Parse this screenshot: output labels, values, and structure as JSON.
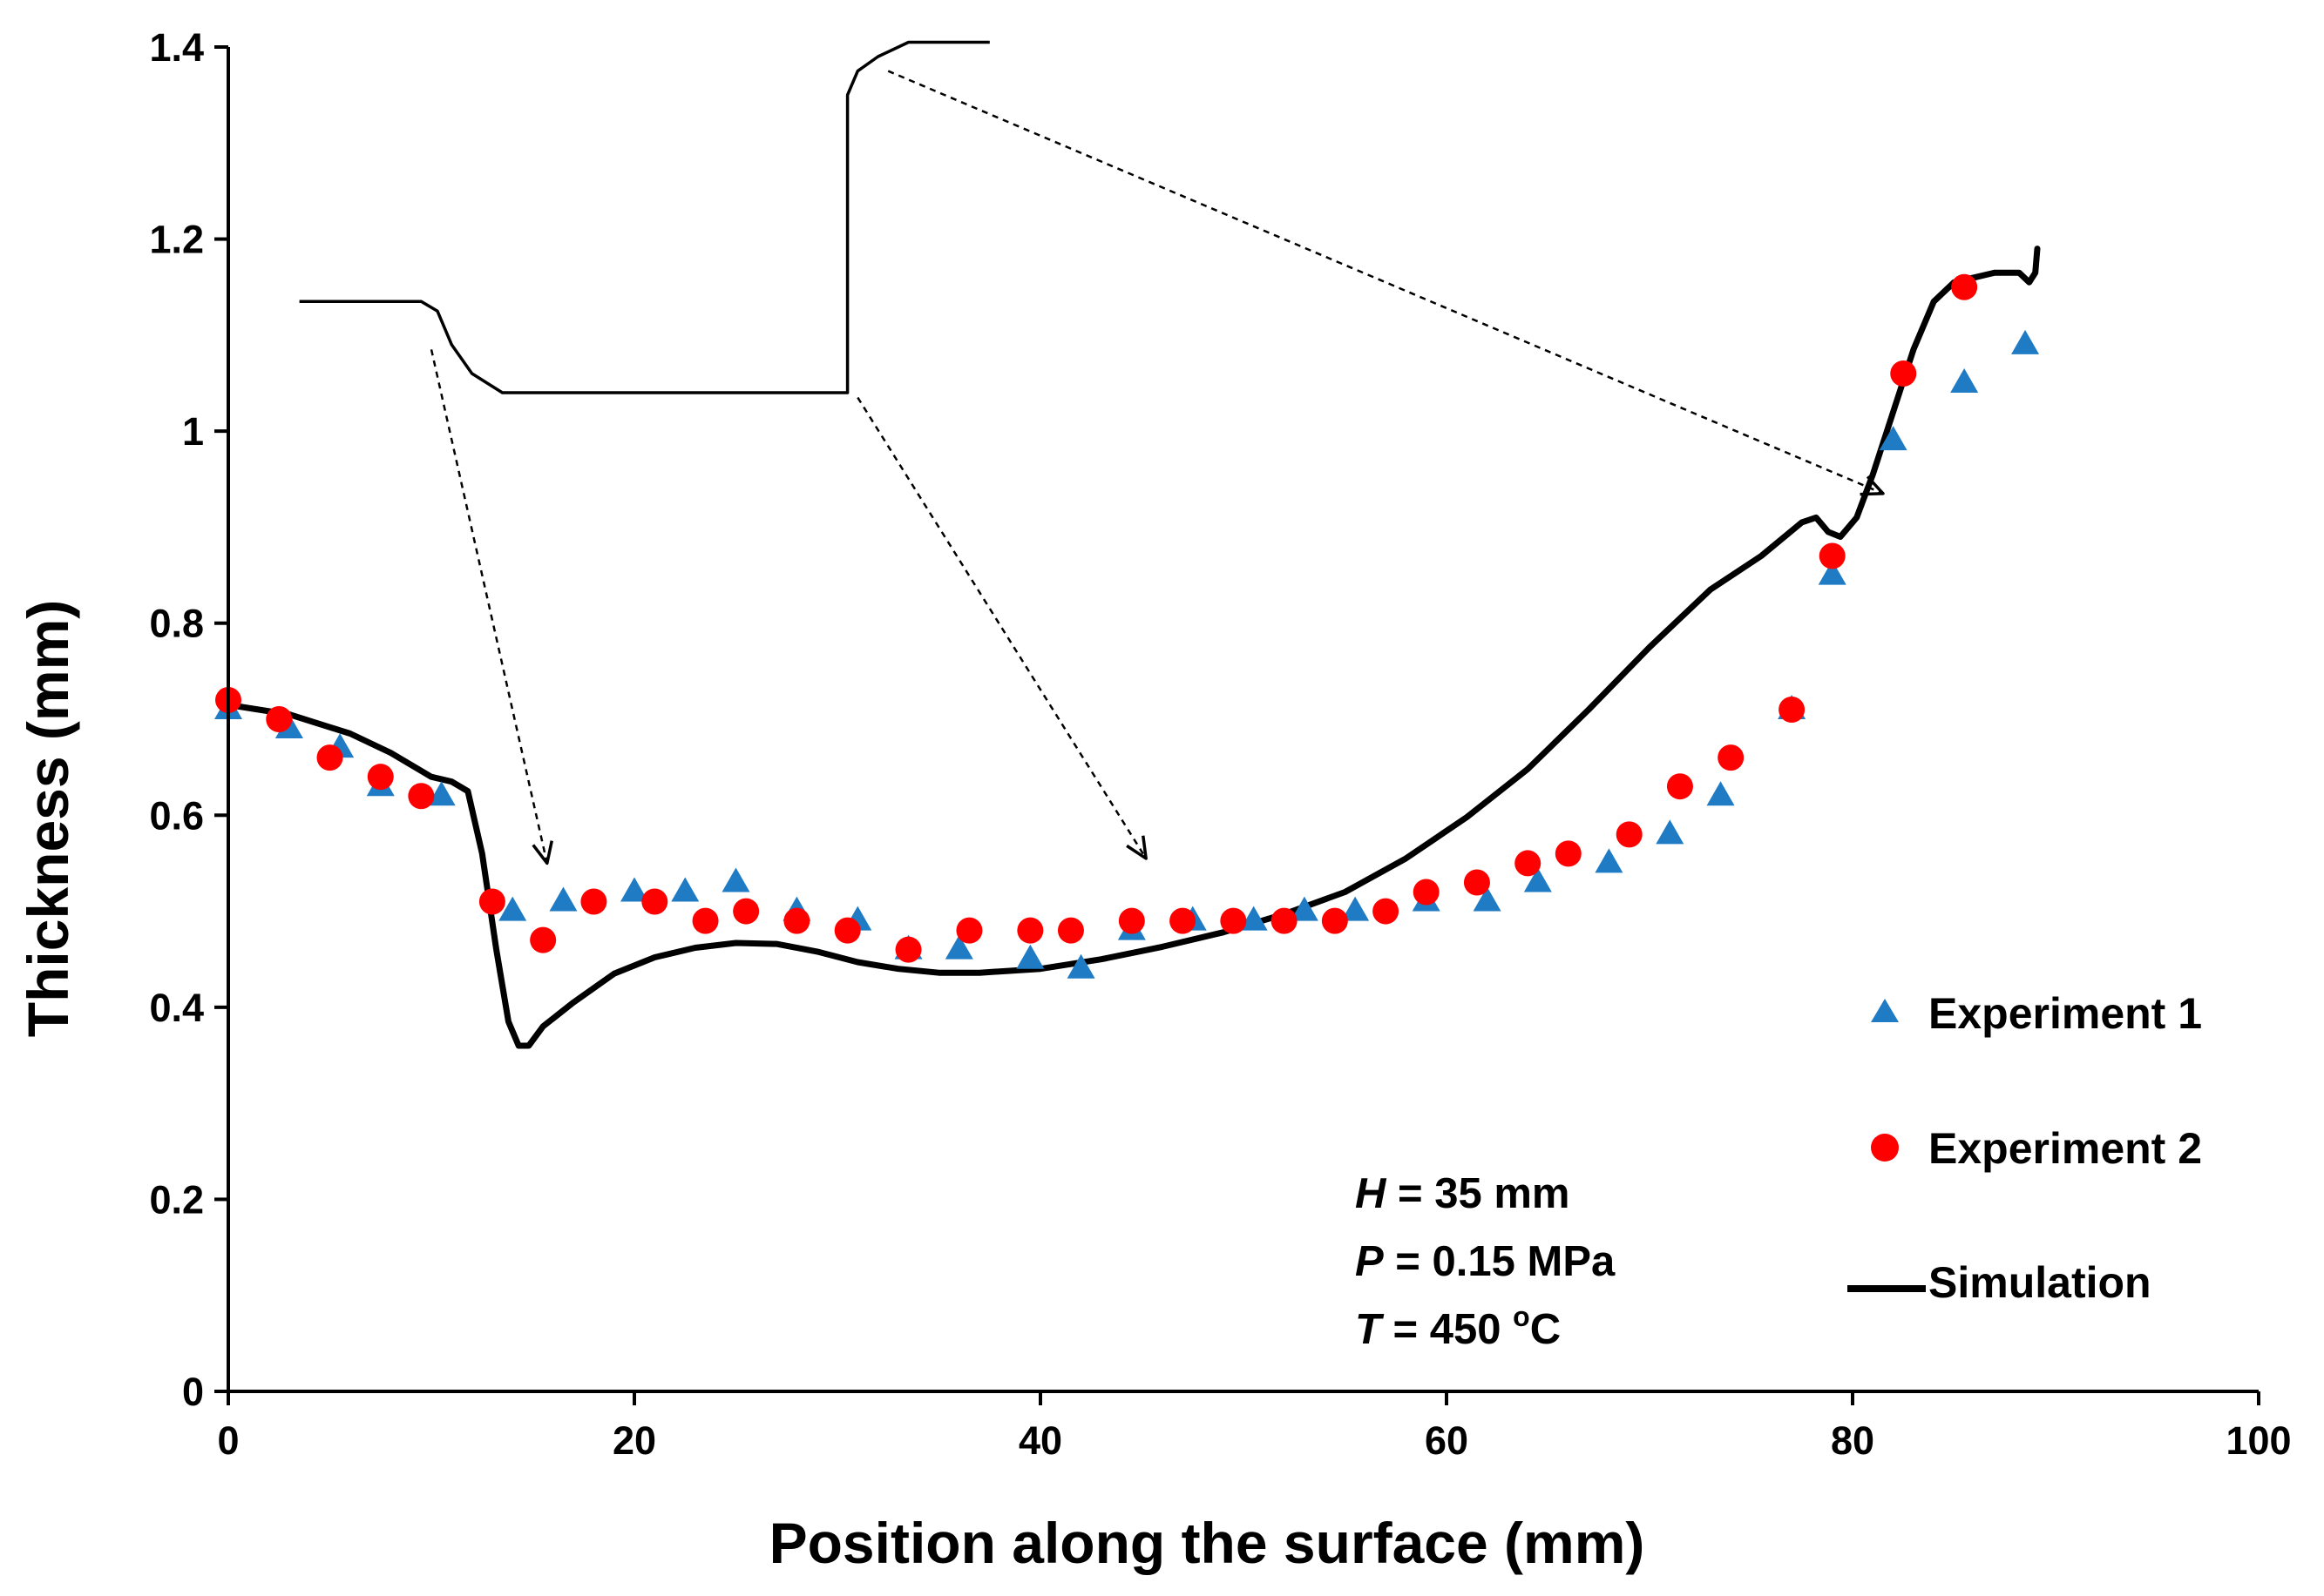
{
  "chart_data": {
    "type": "scatter",
    "title": "",
    "xlabel": "Position along the surface (mm)",
    "ylabel": "Thickness (mm)",
    "xlim": [
      0,
      100
    ],
    "ylim": [
      0,
      1.4
    ],
    "xticks": [
      0,
      20,
      40,
      60,
      80,
      100
    ],
    "yticks": [
      {
        "value": 0,
        "label": "0"
      },
      {
        "value": 0.2,
        "label": "0.2"
      },
      {
        "value": 0.4,
        "label": "0.4"
      },
      {
        "value": 0.6,
        "label": "0.6"
      },
      {
        "value": 0.8,
        "label": "0.8"
      },
      {
        "value": 1.0,
        "label": "1"
      },
      {
        "value": 1.2,
        "label": "1.2"
      },
      {
        "value": 1.4,
        "label": "1.4"
      }
    ],
    "grid": false,
    "legend_position": "right",
    "series": [
      {
        "name": "Experiment 1",
        "marker": "triangle",
        "color": "#1f7bc4",
        "points": [
          [
            0,
            0.71
          ],
          [
            3,
            0.69
          ],
          [
            5.5,
            0.67
          ],
          [
            7.5,
            0.63
          ],
          [
            10.5,
            0.62
          ],
          [
            14,
            0.5
          ],
          [
            16.5,
            0.51
          ],
          [
            20,
            0.52
          ],
          [
            22.5,
            0.52
          ],
          [
            25,
            0.53
          ],
          [
            28,
            0.5
          ],
          [
            31,
            0.49
          ],
          [
            33.5,
            0.46
          ],
          [
            36,
            0.46
          ],
          [
            39.5,
            0.45
          ],
          [
            42,
            0.44
          ],
          [
            44.5,
            0.48
          ],
          [
            47.5,
            0.49
          ],
          [
            50.5,
            0.49
          ],
          [
            53,
            0.5
          ],
          [
            55.5,
            0.5
          ],
          [
            59,
            0.51
          ],
          [
            62,
            0.51
          ],
          [
            64.5,
            0.53
          ],
          [
            68,
            0.55
          ],
          [
            71,
            0.58
          ],
          [
            73.5,
            0.62
          ],
          [
            77,
            0.71
          ],
          [
            79,
            0.85
          ],
          [
            82,
            0.99
          ],
          [
            85.5,
            1.05
          ],
          [
            88.5,
            1.09
          ]
        ]
      },
      {
        "name": "Experiment 2",
        "marker": "circle",
        "color": "#ff0000",
        "points": [
          [
            0,
            0.72
          ],
          [
            2.5,
            0.7
          ],
          [
            5,
            0.66
          ],
          [
            7.5,
            0.64
          ],
          [
            9.5,
            0.62
          ],
          [
            13,
            0.51
          ],
          [
            15.5,
            0.47
          ],
          [
            18,
            0.51
          ],
          [
            21,
            0.51
          ],
          [
            23.5,
            0.49
          ],
          [
            25.5,
            0.5
          ],
          [
            28,
            0.49
          ],
          [
            30.5,
            0.48
          ],
          [
            33.5,
            0.46
          ],
          [
            36.5,
            0.48
          ],
          [
            39.5,
            0.48
          ],
          [
            41.5,
            0.48
          ],
          [
            44.5,
            0.49
          ],
          [
            47,
            0.49
          ],
          [
            49.5,
            0.49
          ],
          [
            52,
            0.49
          ],
          [
            54.5,
            0.49
          ],
          [
            57,
            0.5
          ],
          [
            59,
            0.52
          ],
          [
            61.5,
            0.53
          ],
          [
            64,
            0.55
          ],
          [
            66,
            0.56
          ],
          [
            69,
            0.58
          ],
          [
            71.5,
            0.63
          ],
          [
            74,
            0.66
          ],
          [
            77,
            0.71
          ],
          [
            79,
            0.87
          ],
          [
            82.5,
            1.06
          ],
          [
            85.5,
            1.15
          ]
        ]
      },
      {
        "name": "Simulation",
        "marker": "line",
        "color": "#000000",
        "points": [
          [
            0,
            0.715
          ],
          [
            3,
            0.705
          ],
          [
            6,
            0.685
          ],
          [
            8,
            0.665
          ],
          [
            10,
            0.64
          ],
          [
            11,
            0.635
          ],
          [
            11.8,
            0.625
          ],
          [
            12.5,
            0.56
          ],
          [
            13.2,
            0.46
          ],
          [
            13.8,
            0.385
          ],
          [
            14.3,
            0.36
          ],
          [
            14.8,
            0.36
          ],
          [
            15.5,
            0.38
          ],
          [
            17,
            0.405
          ],
          [
            19,
            0.435
          ],
          [
            21,
            0.452
          ],
          [
            23,
            0.462
          ],
          [
            25,
            0.467
          ],
          [
            27,
            0.466
          ],
          [
            29,
            0.458
          ],
          [
            31,
            0.447
          ],
          [
            33,
            0.44
          ],
          [
            35,
            0.436
          ],
          [
            37,
            0.436
          ],
          [
            40,
            0.44
          ],
          [
            43,
            0.45
          ],
          [
            46,
            0.463
          ],
          [
            49,
            0.478
          ],
          [
            52,
            0.497
          ],
          [
            55,
            0.52
          ],
          [
            58,
            0.555
          ],
          [
            61,
            0.598
          ],
          [
            64,
            0.648
          ],
          [
            67,
            0.71
          ],
          [
            70,
            0.775
          ],
          [
            73,
            0.835
          ],
          [
            75.5,
            0.87
          ],
          [
            77.5,
            0.905
          ],
          [
            78.2,
            0.91
          ],
          [
            78.8,
            0.895
          ],
          [
            79.4,
            0.89
          ],
          [
            80.2,
            0.91
          ],
          [
            81,
            0.955
          ],
          [
            82,
            1.02
          ],
          [
            83,
            1.085
          ],
          [
            84,
            1.135
          ],
          [
            85,
            1.155
          ],
          [
            86,
            1.16
          ],
          [
            87,
            1.165
          ],
          [
            88.2,
            1.165
          ],
          [
            88.7,
            1.155
          ],
          [
            89,
            1.165
          ],
          [
            89.1,
            1.19
          ]
        ]
      }
    ],
    "annotations": {
      "params": [
        {
          "symbol": "H",
          "rest": " = 35 mm"
        },
        {
          "symbol": "P",
          "rest": " = 0.15 MPa"
        },
        {
          "symbol": "T",
          "rest": " = 450 ",
          "sup": "o",
          "unit": "C"
        }
      ],
      "profile_inset": {
        "note": "schematic part cross-section drawn in data units",
        "points": [
          [
            3.5,
            1.135
          ],
          [
            9.5,
            1.135
          ],
          [
            10.3,
            1.125
          ],
          [
            11,
            1.09
          ],
          [
            12,
            1.06
          ],
          [
            13.5,
            1.04
          ],
          [
            30.5,
            1.04
          ],
          [
            30.5,
            1.35
          ],
          [
            31,
            1.375
          ],
          [
            32,
            1.39
          ],
          [
            33.5,
            1.405
          ],
          [
            37.5,
            1.405
          ]
        ]
      },
      "arrows": [
        {
          "from": [
            10,
            1.085
          ],
          "to": [
            15.7,
            0.55
          ]
        },
        {
          "from": [
            31,
            1.035
          ],
          "to": [
            45.2,
            0.555
          ]
        },
        {
          "from": [
            32.5,
            1.375
          ],
          "to": [
            81.5,
            0.935
          ]
        }
      ]
    }
  }
}
